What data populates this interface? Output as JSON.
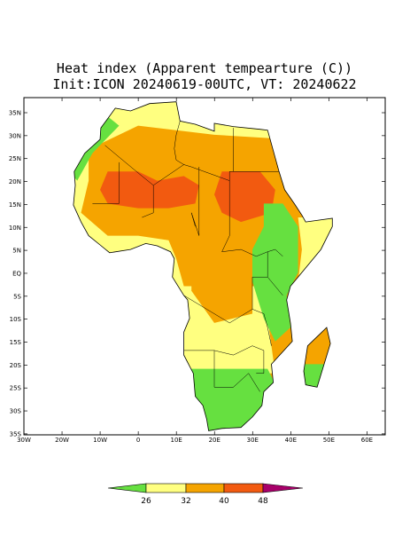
{
  "title": {
    "line1": "Heat index (Apparent tempearture (C))",
    "line2": "Init:ICON 20240619-00UTC, VT: 20240622"
  },
  "axes": {
    "y_labels": [
      "35N",
      "30N",
      "25N",
      "20N",
      "15N",
      "10N",
      "5N",
      "EQ",
      "5S",
      "10S",
      "15S",
      "20S",
      "25S",
      "30S",
      "35S"
    ],
    "x_labels": [
      "30W",
      "20W",
      "10W",
      "0",
      "10E",
      "20E",
      "30E",
      "40E",
      "50E",
      "60E"
    ]
  },
  "colorbar": {
    "labels": [
      "26",
      "32",
      "40",
      "48"
    ]
  }
}
